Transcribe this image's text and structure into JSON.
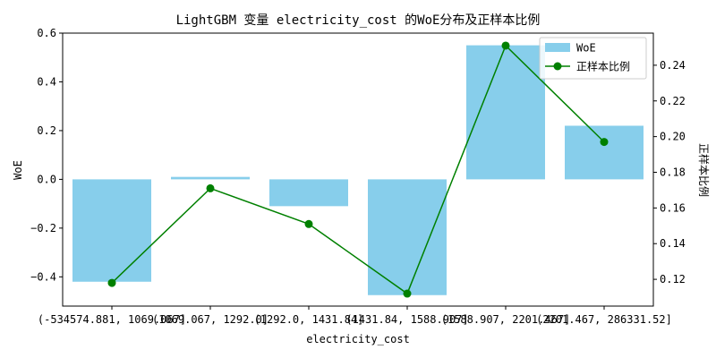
{
  "chart_data": {
    "type": "bar",
    "title": "LightGBM 变量 electricity_cost 的WoE分布及正样本比例",
    "xlabel": "electricity_cost",
    "ylabel_left": "WoE",
    "ylabel_right": "正样本比例",
    "categories": [
      "(-534574.881, 1069.067]",
      "(1069.067, 1292.0]",
      "(1292.0, 1431.84]",
      "(1431.84, 1588.907]",
      "(1588.907, 2201.467]",
      "(2201.467, 286331.52]"
    ],
    "series": [
      {
        "name": "WoE",
        "type": "bar",
        "axis": "left",
        "color": "#87ceeb",
        "values": [
          -0.42,
          0.01,
          -0.11,
          -0.475,
          0.55,
          0.22
        ]
      },
      {
        "name": "正样本比例",
        "type": "line",
        "axis": "right",
        "color": "#008000",
        "values": [
          0.118,
          0.171,
          0.151,
          0.112,
          0.251,
          0.197
        ]
      }
    ],
    "ylim_left": [
      -0.52,
      0.6
    ],
    "yticks_left": [
      -0.4,
      -0.2,
      0.0,
      0.2,
      0.4,
      0.6
    ],
    "yticks_left_labels": [
      "−0.4",
      "−0.2",
      "0.0",
      "0.2",
      "0.4",
      "0.6"
    ],
    "ylim_right": [
      0.105,
      0.258
    ],
    "yticks_right": [
      0.12,
      0.14,
      0.16,
      0.18,
      0.2,
      0.22,
      0.24
    ],
    "yticks_right_labels": [
      "0.12",
      "0.14",
      "0.16",
      "0.18",
      "0.20",
      "0.22",
      "0.24"
    ],
    "legend": "top-right",
    "grid": false
  }
}
